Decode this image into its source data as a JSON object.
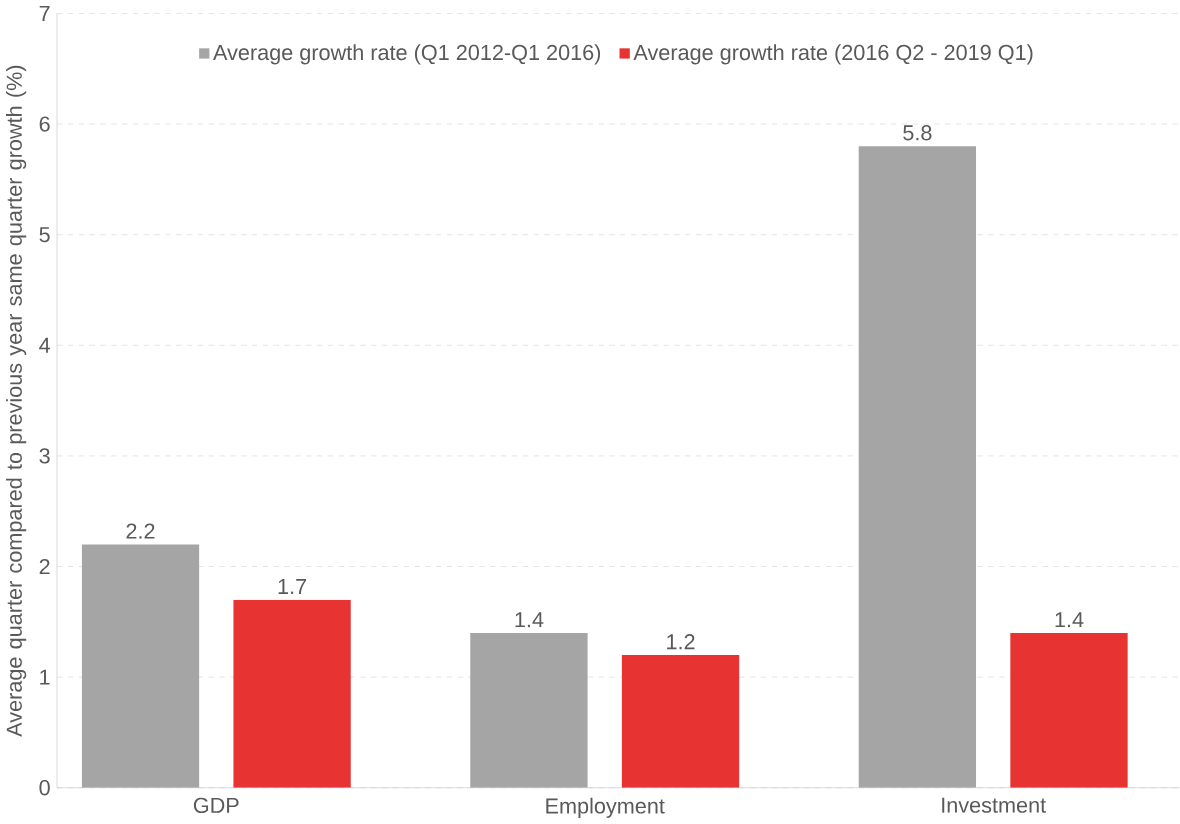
{
  "chart_data": {
    "type": "bar",
    "ylabel": "Average quarter compared to previous year same quarter growth  (%)",
    "categories": [
      "GDP",
      "Employment",
      "Investment"
    ],
    "series": [
      {
        "name": "Average growth rate (Q1 2012-Q1 2016)",
        "color": "#a5a5a5",
        "values": [
          2.2,
          1.4,
          5.8
        ]
      },
      {
        "name": "Average growth rate (2016 Q2 - 2019 Q1)",
        "color": "#e83333",
        "values": [
          1.7,
          1.2,
          1.4
        ]
      }
    ],
    "ylim": [
      0,
      7
    ],
    "yticks": [
      0,
      1,
      2,
      3,
      4,
      5,
      6,
      7
    ],
    "grid": "y",
    "legend": "top",
    "data_labels": true
  }
}
